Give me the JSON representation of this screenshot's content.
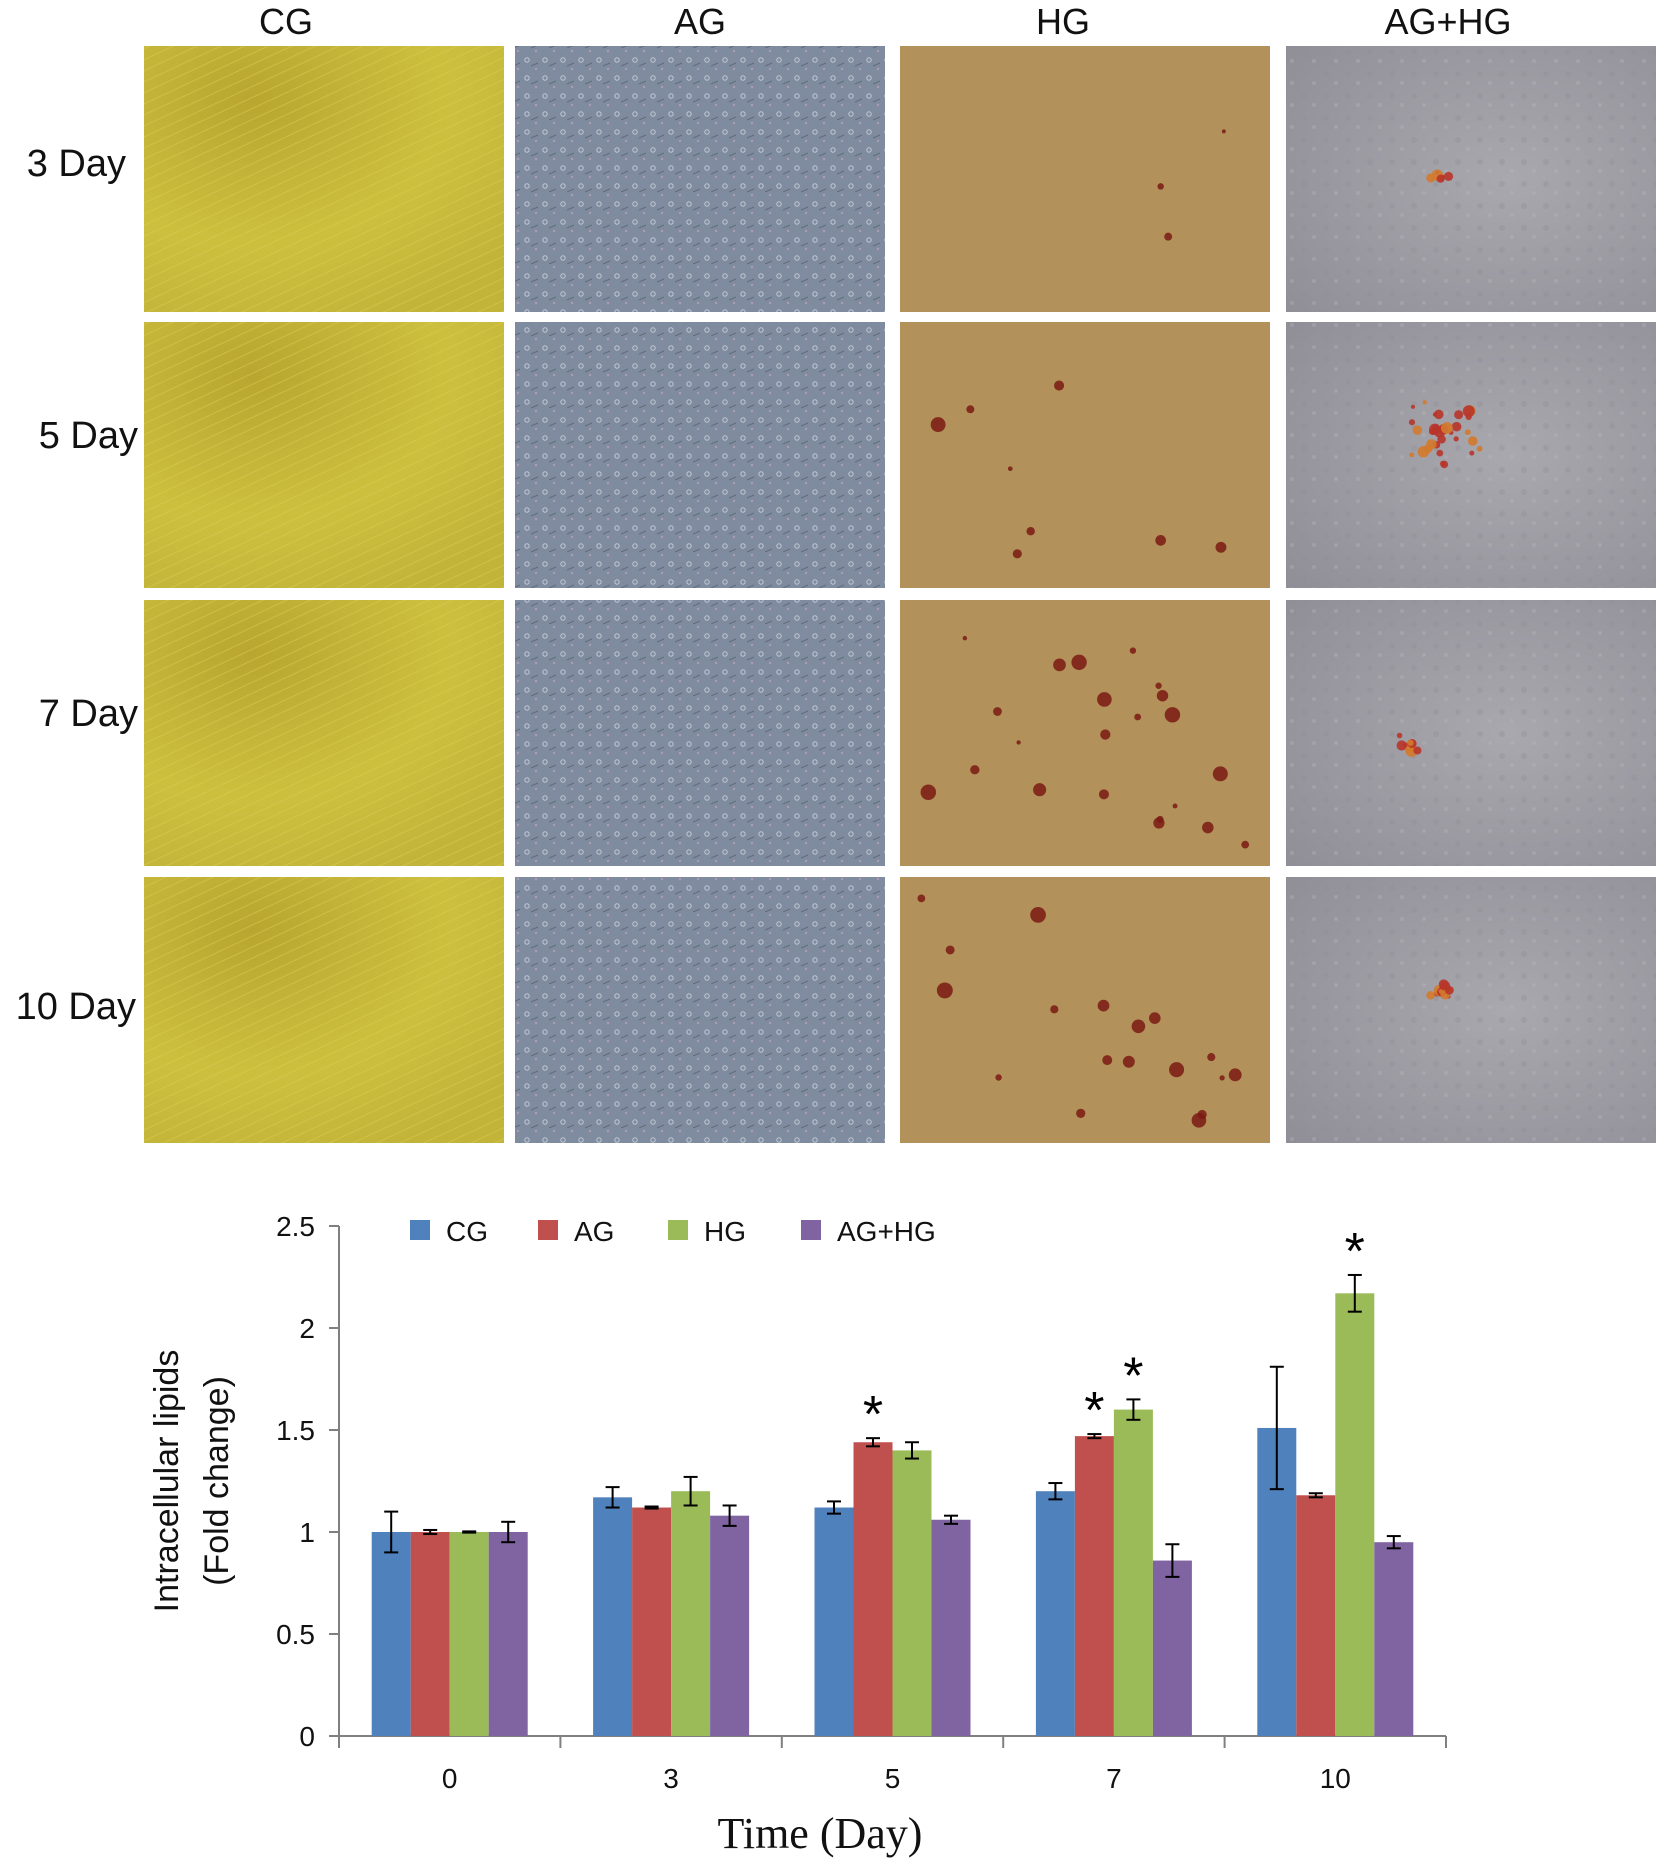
{
  "panel_grid": {
    "columns": [
      "CG",
      "AG",
      "HG",
      "AG+HG"
    ],
    "rows": [
      "3 Day",
      "5 Day",
      "7 Day",
      "10 Day"
    ],
    "tile_colors": {
      "CG": "#c4b535",
      "AG": "#7f8c9f",
      "HG": "#b2925a",
      "AG+HG": "#9d9ca2"
    },
    "stain_color": "#7a1a14"
  },
  "chart_data": {
    "type": "bar",
    "categories": [
      "0",
      "3",
      "5",
      "7",
      "10"
    ],
    "series": [
      {
        "name": "CG",
        "color": "#4f81bd",
        "values": [
          1.0,
          1.17,
          1.12,
          1.2,
          1.51
        ],
        "errors": [
          0.1,
          0.05,
          0.03,
          0.04,
          0.3
        ]
      },
      {
        "name": "AG",
        "color": "#c0504d",
        "values": [
          1.0,
          1.12,
          1.44,
          1.47,
          1.18
        ],
        "errors": [
          0.01,
          0.005,
          0.02,
          0.01,
          0.01
        ]
      },
      {
        "name": "HG",
        "color": "#9bbb59",
        "values": [
          1.0,
          1.2,
          1.4,
          1.6,
          2.17
        ],
        "errors": [
          0.003,
          0.07,
          0.04,
          0.05,
          0.09
        ]
      },
      {
        "name": "AG+HG",
        "color": "#8064a2",
        "values": [
          1.0,
          1.08,
          1.06,
          0.86,
          0.95
        ],
        "errors": [
          0.05,
          0.05,
          0.02,
          0.08,
          0.03
        ]
      }
    ],
    "significance": [
      {
        "series": "AG",
        "category": "5",
        "label": "*"
      },
      {
        "series": "AG",
        "category": "7",
        "label": "*"
      },
      {
        "series": "HG",
        "category": "7",
        "label": "*"
      },
      {
        "series": "HG",
        "category": "10",
        "label": "*"
      }
    ],
    "ylim": [
      0,
      2.5
    ],
    "yticks": [
      "0",
      "0.5",
      "1",
      "1.5",
      "2",
      "2.5"
    ],
    "ylabel_line1": "Intracellular lipids",
    "ylabel_line2": "(Fold change)",
    "xlabel": "Time (Day)",
    "legend_position": "top",
    "grid": false
  }
}
